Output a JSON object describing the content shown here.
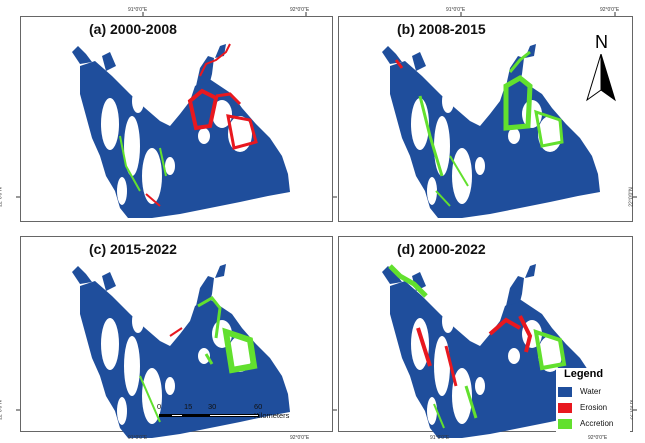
{
  "panels": [
    {
      "id": "a",
      "title": "(a) 2000-2008"
    },
    {
      "id": "b",
      "title": "(b) 2008-2015"
    },
    {
      "id": "c",
      "title": "(c) 2015-2022"
    },
    {
      "id": "d",
      "title": "(d) 2000-2022"
    }
  ],
  "coords": {
    "lon_91": "91°0'0\"E",
    "lon_92": "92°0'0\"E",
    "lat_22": "22°0'0\"N"
  },
  "north_arrow": {
    "letter": "N"
  },
  "legend": {
    "title": "Legend",
    "items": [
      {
        "label": "Water",
        "color": "#1f4e9c"
      },
      {
        "label": "Erosion",
        "color": "#e8181f"
      },
      {
        "label": "Accretion",
        "color": "#62e02e"
      }
    ]
  },
  "scale_bar": {
    "ticks": [
      "0",
      "15",
      "30",
      "60 Kilometers"
    ]
  }
}
